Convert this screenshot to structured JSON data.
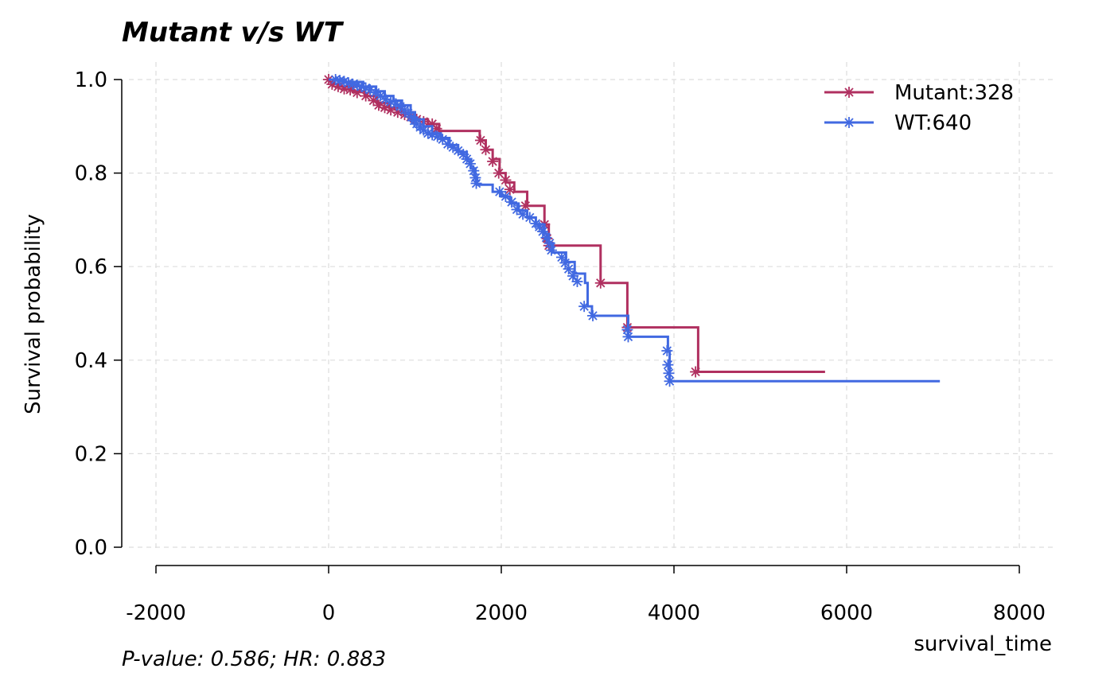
{
  "chart_data": {
    "type": "line",
    "subtype": "kaplan-meier",
    "title": "Mutant v/s WT",
    "xlabel": "survival_time",
    "ylabel": "Survival probability",
    "footnote": "P-value: 0.586; HR: 0.883",
    "xlim": [
      -2200,
      8400
    ],
    "ylim": [
      0.0,
      1.02
    ],
    "xticks": [
      -2000,
      0,
      2000,
      4000,
      6000,
      8000
    ],
    "xtick_labels": [
      "-2000",
      "0",
      "2000",
      "4000",
      "6000",
      "8000"
    ],
    "yticks": [
      0.0,
      0.2,
      0.4,
      0.6,
      0.8,
      1.0
    ],
    "ytick_labels": [
      "0.0",
      "0.2",
      "0.4",
      "0.6",
      "0.8",
      "1.0"
    ],
    "grid": true,
    "legend_position": "top-right",
    "series": [
      {
        "name": "Mutant:328",
        "color": "#b03060",
        "steps": [
          [
            0,
            1.0
          ],
          [
            50,
            0.99
          ],
          [
            150,
            0.985
          ],
          [
            280,
            0.975
          ],
          [
            420,
            0.965
          ],
          [
            560,
            0.95
          ],
          [
            700,
            0.94
          ],
          [
            850,
            0.93
          ],
          [
            1000,
            0.915
          ],
          [
            1150,
            0.905
          ],
          [
            1280,
            0.89
          ],
          [
            1750,
            0.87
          ],
          [
            1820,
            0.85
          ],
          [
            1900,
            0.83
          ],
          [
            1980,
            0.8
          ],
          [
            2050,
            0.78
          ],
          [
            2150,
            0.76
          ],
          [
            2300,
            0.73
          ],
          [
            2500,
            0.69
          ],
          [
            2550,
            0.645
          ],
          [
            3150,
            0.565
          ],
          [
            3460,
            0.47
          ],
          [
            4280,
            0.375
          ],
          [
            5750,
            0.375
          ]
        ],
        "censored": [
          [
            0,
            1.0
          ],
          [
            40,
            0.99
          ],
          [
            110,
            0.985
          ],
          [
            180,
            0.98
          ],
          [
            250,
            0.978
          ],
          [
            330,
            0.972
          ],
          [
            430,
            0.965
          ],
          [
            520,
            0.955
          ],
          [
            580,
            0.945
          ],
          [
            650,
            0.94
          ],
          [
            720,
            0.935
          ],
          [
            800,
            0.93
          ],
          [
            880,
            0.925
          ],
          [
            950,
            0.92
          ],
          [
            1020,
            0.915
          ],
          [
            1100,
            0.91
          ],
          [
            1200,
            0.905
          ],
          [
            1250,
            0.895
          ],
          [
            1760,
            0.87
          ],
          [
            1820,
            0.85
          ],
          [
            1900,
            0.825
          ],
          [
            1970,
            0.8
          ],
          [
            2050,
            0.785
          ],
          [
            2100,
            0.765
          ],
          [
            2280,
            0.73
          ],
          [
            2500,
            0.69
          ],
          [
            2530,
            0.66
          ],
          [
            2550,
            0.645
          ],
          [
            3150,
            0.565
          ],
          [
            3460,
            0.47
          ],
          [
            4250,
            0.375
          ]
        ]
      },
      {
        "name": "WT:640",
        "color": "#4169e1",
        "steps": [
          [
            0,
            1.0
          ],
          [
            200,
            0.995
          ],
          [
            400,
            0.985
          ],
          [
            550,
            0.975
          ],
          [
            650,
            0.965
          ],
          [
            750,
            0.955
          ],
          [
            850,
            0.945
          ],
          [
            950,
            0.93
          ],
          [
            1000,
            0.915
          ],
          [
            1100,
            0.9
          ],
          [
            1200,
            0.885
          ],
          [
            1300,
            0.875
          ],
          [
            1400,
            0.86
          ],
          [
            1500,
            0.845
          ],
          [
            1600,
            0.83
          ],
          [
            1650,
            0.81
          ],
          [
            1700,
            0.79
          ],
          [
            1720,
            0.775
          ],
          [
            1900,
            0.76
          ],
          [
            2000,
            0.75
          ],
          [
            2100,
            0.735
          ],
          [
            2200,
            0.72
          ],
          [
            2300,
            0.705
          ],
          [
            2400,
            0.69
          ],
          [
            2500,
            0.67
          ],
          [
            2550,
            0.65
          ],
          [
            2600,
            0.63
          ],
          [
            2750,
            0.61
          ],
          [
            2850,
            0.585
          ],
          [
            2970,
            0.565
          ],
          [
            3000,
            0.515
          ],
          [
            3050,
            0.495
          ],
          [
            3470,
            0.45
          ],
          [
            3930,
            0.42
          ],
          [
            3950,
            0.355
          ],
          [
            7080,
            0.355
          ]
        ],
        "censored": [
          [
            80,
            1.0
          ],
          [
            130,
            0.998
          ],
          [
            180,
            0.996
          ],
          [
            230,
            0.993
          ],
          [
            280,
            0.99
          ],
          [
            330,
            0.988
          ],
          [
            380,
            0.985
          ],
          [
            430,
            0.982
          ],
          [
            480,
            0.978
          ],
          [
            540,
            0.972
          ],
          [
            600,
            0.965
          ],
          [
            660,
            0.958
          ],
          [
            720,
            0.952
          ],
          [
            780,
            0.948
          ],
          [
            830,
            0.942
          ],
          [
            880,
            0.935
          ],
          [
            920,
            0.928
          ],
          [
            960,
            0.92
          ],
          [
            990,
            0.912
          ],
          [
            1020,
            0.905
          ],
          [
            1060,
            0.898
          ],
          [
            1100,
            0.892
          ],
          [
            1150,
            0.885
          ],
          [
            1200,
            0.882
          ],
          [
            1260,
            0.878
          ],
          [
            1320,
            0.872
          ],
          [
            1380,
            0.862
          ],
          [
            1440,
            0.855
          ],
          [
            1500,
            0.848
          ],
          [
            1560,
            0.84
          ],
          [
            1600,
            0.83
          ],
          [
            1640,
            0.82
          ],
          [
            1680,
            0.805
          ],
          [
            1700,
            0.79
          ],
          [
            1710,
            0.778
          ],
          [
            1980,
            0.76
          ],
          [
            2050,
            0.75
          ],
          [
            2120,
            0.738
          ],
          [
            2180,
            0.722
          ],
          [
            2250,
            0.712
          ],
          [
            2330,
            0.705
          ],
          [
            2400,
            0.692
          ],
          [
            2440,
            0.685
          ],
          [
            2480,
            0.675
          ],
          [
            2520,
            0.662
          ],
          [
            2560,
            0.65
          ],
          [
            2580,
            0.635
          ],
          [
            2700,
            0.62
          ],
          [
            2740,
            0.608
          ],
          [
            2780,
            0.595
          ],
          [
            2830,
            0.58
          ],
          [
            2880,
            0.568
          ],
          [
            2960,
            0.515
          ],
          [
            3060,
            0.495
          ],
          [
            3460,
            0.465
          ],
          [
            3470,
            0.45
          ],
          [
            3920,
            0.42
          ],
          [
            3930,
            0.39
          ],
          [
            3940,
            0.372
          ],
          [
            3950,
            0.355
          ]
        ]
      }
    ]
  }
}
